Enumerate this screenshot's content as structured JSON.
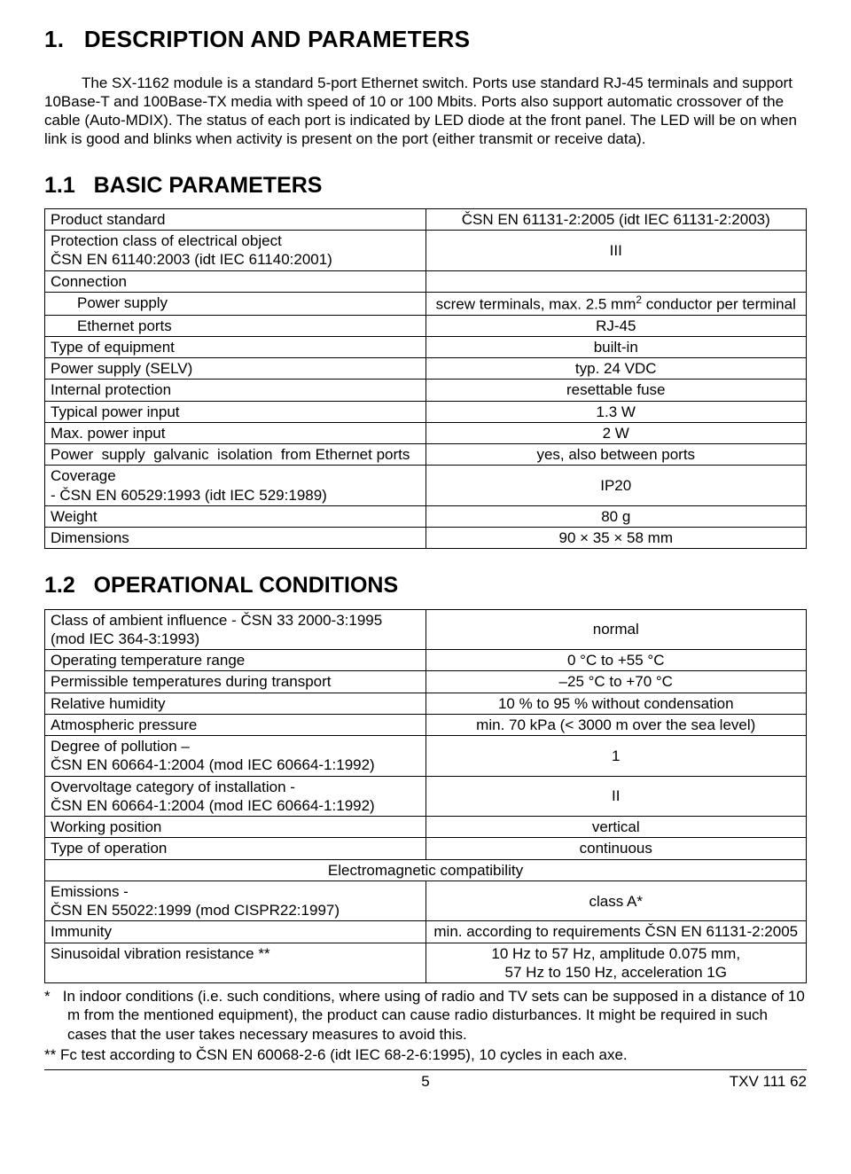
{
  "heading1": "1.   DESCRIPTION AND PARAMETERS",
  "intro": "The SX-1162 module is a standard 5-port Ethernet switch. Ports use standard RJ-45 terminals and support 10Base-T and 100Base-TX media with speed of 10 or 100 Mbits. Ports also support automatic crossover of the cable (Auto-MDIX). The status of each port is indicated by LED diode at the front panel. The LED will be on when link is good and blinks when activity is present on the port (either transmit or receive data).",
  "heading11": "1.1   BASIC PARAMETERS",
  "t1": {
    "r1a": "Product standard",
    "r1b": "ČSN EN 61131-2:2005 (idt IEC 61131-2:2003)",
    "r2a": "Protection class of electrical object",
    "r2a_sub": "ČSN EN 61140:2003 (idt IEC 61140:2001)",
    "r2b": "III",
    "r3a": "Connection",
    "r4a": "Power supply",
    "r4b_html": "screw terminals, max. 2.5 mm<sup>2</sup> conductor per terminal",
    "r5a": "Ethernet ports",
    "r5b": "RJ-45",
    "r6a": "Type of equipment",
    "r6b": "built-in",
    "r7a": "Power supply (SELV)",
    "r7b": "typ. 24 VDC",
    "r8a": "Internal protection",
    "r8b": "resettable fuse",
    "r9a": "Typical power input",
    "r9b": "1.3 W",
    "r10a": "Max. power input",
    "r10b": "2 W",
    "r11a": "Power  supply  galvanic  isolation  from Ethernet ports",
    "r11b": "yes, also between ports",
    "r12a": "Coverage",
    "r12a_sub": "- ČSN EN 60529:1993 (idt IEC 529:1989)",
    "r12b": "IP20",
    "r13a": "Weight",
    "r13b": "80 g",
    "r14a": "Dimensions",
    "r14b": "90 × 35 × 58 mm"
  },
  "heading12": "1.2   OPERATIONAL CONDITIONS",
  "t2": {
    "r1a": "Class of ambient influence - ČSN 33 2000-3:1995 (mod IEC 364-3:1993)",
    "r1b": "normal",
    "r2a": "Operating temperature range",
    "r2b": "0 °C to +55 °C",
    "r3a": "Permissible temperatures during transport",
    "r3b": "–25 °C to +70 °C",
    "r4a": "Relative humidity",
    "r4b": "10 % to 95 % without condensation",
    "r5a": "Atmospheric pressure",
    "r5b": "min. 70 kPa (< 3000 m over the sea level)",
    "r6a": "Degree of pollution –",
    "r6a_sub": "ČSN EN 60664-1:2004 (mod IEC 60664-1:1992)",
    "r6b": "1",
    "r7a": "Overvoltage category of installation -",
    "r7a_sub": "ČSN EN 60664-1:2004 (mod IEC 60664-1:1992)",
    "r7b": "II",
    "r8a": "Working position",
    "r8b": "vertical",
    "r9a": "Type of operation",
    "r9b": "continuous",
    "emc": "Electromagnetic compatibility",
    "r10a": "Emissions -",
    "r10a_sub": "ČSN EN 55022:1999 (mod CISPR22:1997)",
    "r10b": "class A*",
    "r11a": "Immunity",
    "r11b": "min. according to requirements ČSN EN 61131-2:2005",
    "r12a": "Sinusoidal vibration resistance **",
    "r12b_html": "10 Hz to 57 Hz, amplitude 0.075 mm,<br>57 Hz to 150 Hz, acceleration 1G"
  },
  "footnote1": "*   In indoor conditions (i.e. such conditions, where using of radio and TV sets can be supposed in a distance of 10 m from the mentioned equipment), the product can cause radio disturbances. It might be required in such cases that the user takes necessary measures to avoid this.",
  "footnote2": "** Fc test according to ČSN EN 60068-2-6 (idt IEC 68-2-6:1995), 10 cycles in each axe.",
  "footer_page": "5",
  "footer_doc": "TXV 111 62",
  "colwidth_left": "50%"
}
